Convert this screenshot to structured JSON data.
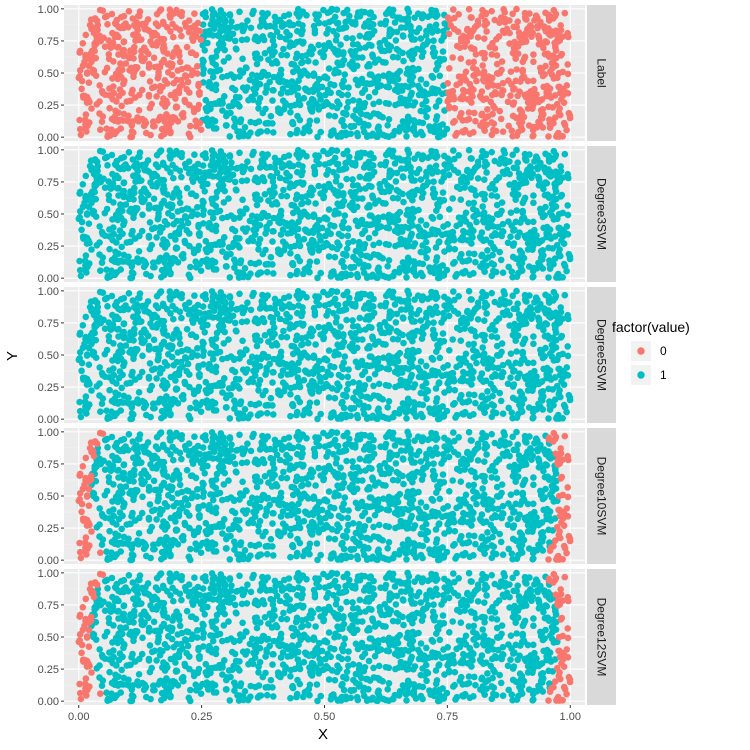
{
  "chart_data": {
    "type": "scatter",
    "xlabel": "X",
    "ylabel": "Y",
    "xlim": [
      -0.03,
      1.03
    ],
    "ylim": [
      -0.03,
      1.03
    ],
    "x_ticks": [
      "0.00",
      "0.25",
      "0.50",
      "0.75",
      "1.00"
    ],
    "x_tick_values": [
      0,
      0.25,
      0.5,
      0.75,
      1
    ],
    "y_ticks": [
      "0.00",
      "0.25",
      "0.50",
      "0.75",
      "1.00"
    ],
    "y_tick_values": [
      0,
      0.25,
      0.5,
      0.75,
      1
    ],
    "grid": true,
    "legend": {
      "title": "factor(value)",
      "position": "right",
      "entries": [
        {
          "label": "0",
          "color": "#F8766D"
        },
        {
          "label": "1",
          "color": "#00BFC4"
        }
      ]
    },
    "facets": [
      {
        "label": "Label",
        "rule": "class 0 where x < 0.25 or x > 0.75; class 1 for 0.25 <= x <= 0.75"
      },
      {
        "label": "Degree3SVM",
        "rule": "all points class 1"
      },
      {
        "label": "Degree5SVM",
        "rule": "all points class 1"
      },
      {
        "label": "Degree10SVM",
        "rule": "class 0 only in thin bands near x = 0 and x = 1"
      },
      {
        "label": "Degree12SVM",
        "rule": "class 0 only in thin bands near x = 0 and x = 1"
      }
    ],
    "n_points_per_facet": 1700
  },
  "colors": {
    "class0": "#F8766D",
    "class1": "#00BFC4",
    "panel_bg": "#EBEBEB",
    "strip_bg": "#D9D9D9",
    "grid_major": "#FFFFFF",
    "grid_minor": "#F4F4F4"
  }
}
